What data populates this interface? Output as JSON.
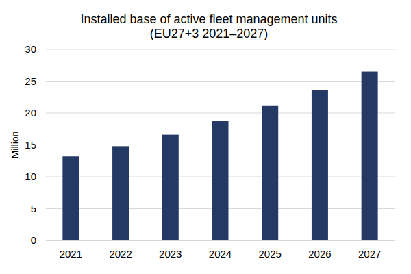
{
  "chart_data": {
    "type": "bar",
    "title": "Installed base of active fleet management units\n(EU27+3 2021–2027)",
    "y_label": "Million",
    "categories": [
      "2021",
      "2022",
      "2023",
      "2024",
      "2025",
      "2026",
      "2027"
    ],
    "values": [
      13.2,
      14.8,
      16.6,
      18.8,
      21.1,
      23.6,
      26.5
    ],
    "color": "#243a64",
    "ylim": [
      0,
      30
    ],
    "yticks": [
      0,
      5,
      10,
      15,
      20,
      25,
      30
    ],
    "grid": true
  }
}
